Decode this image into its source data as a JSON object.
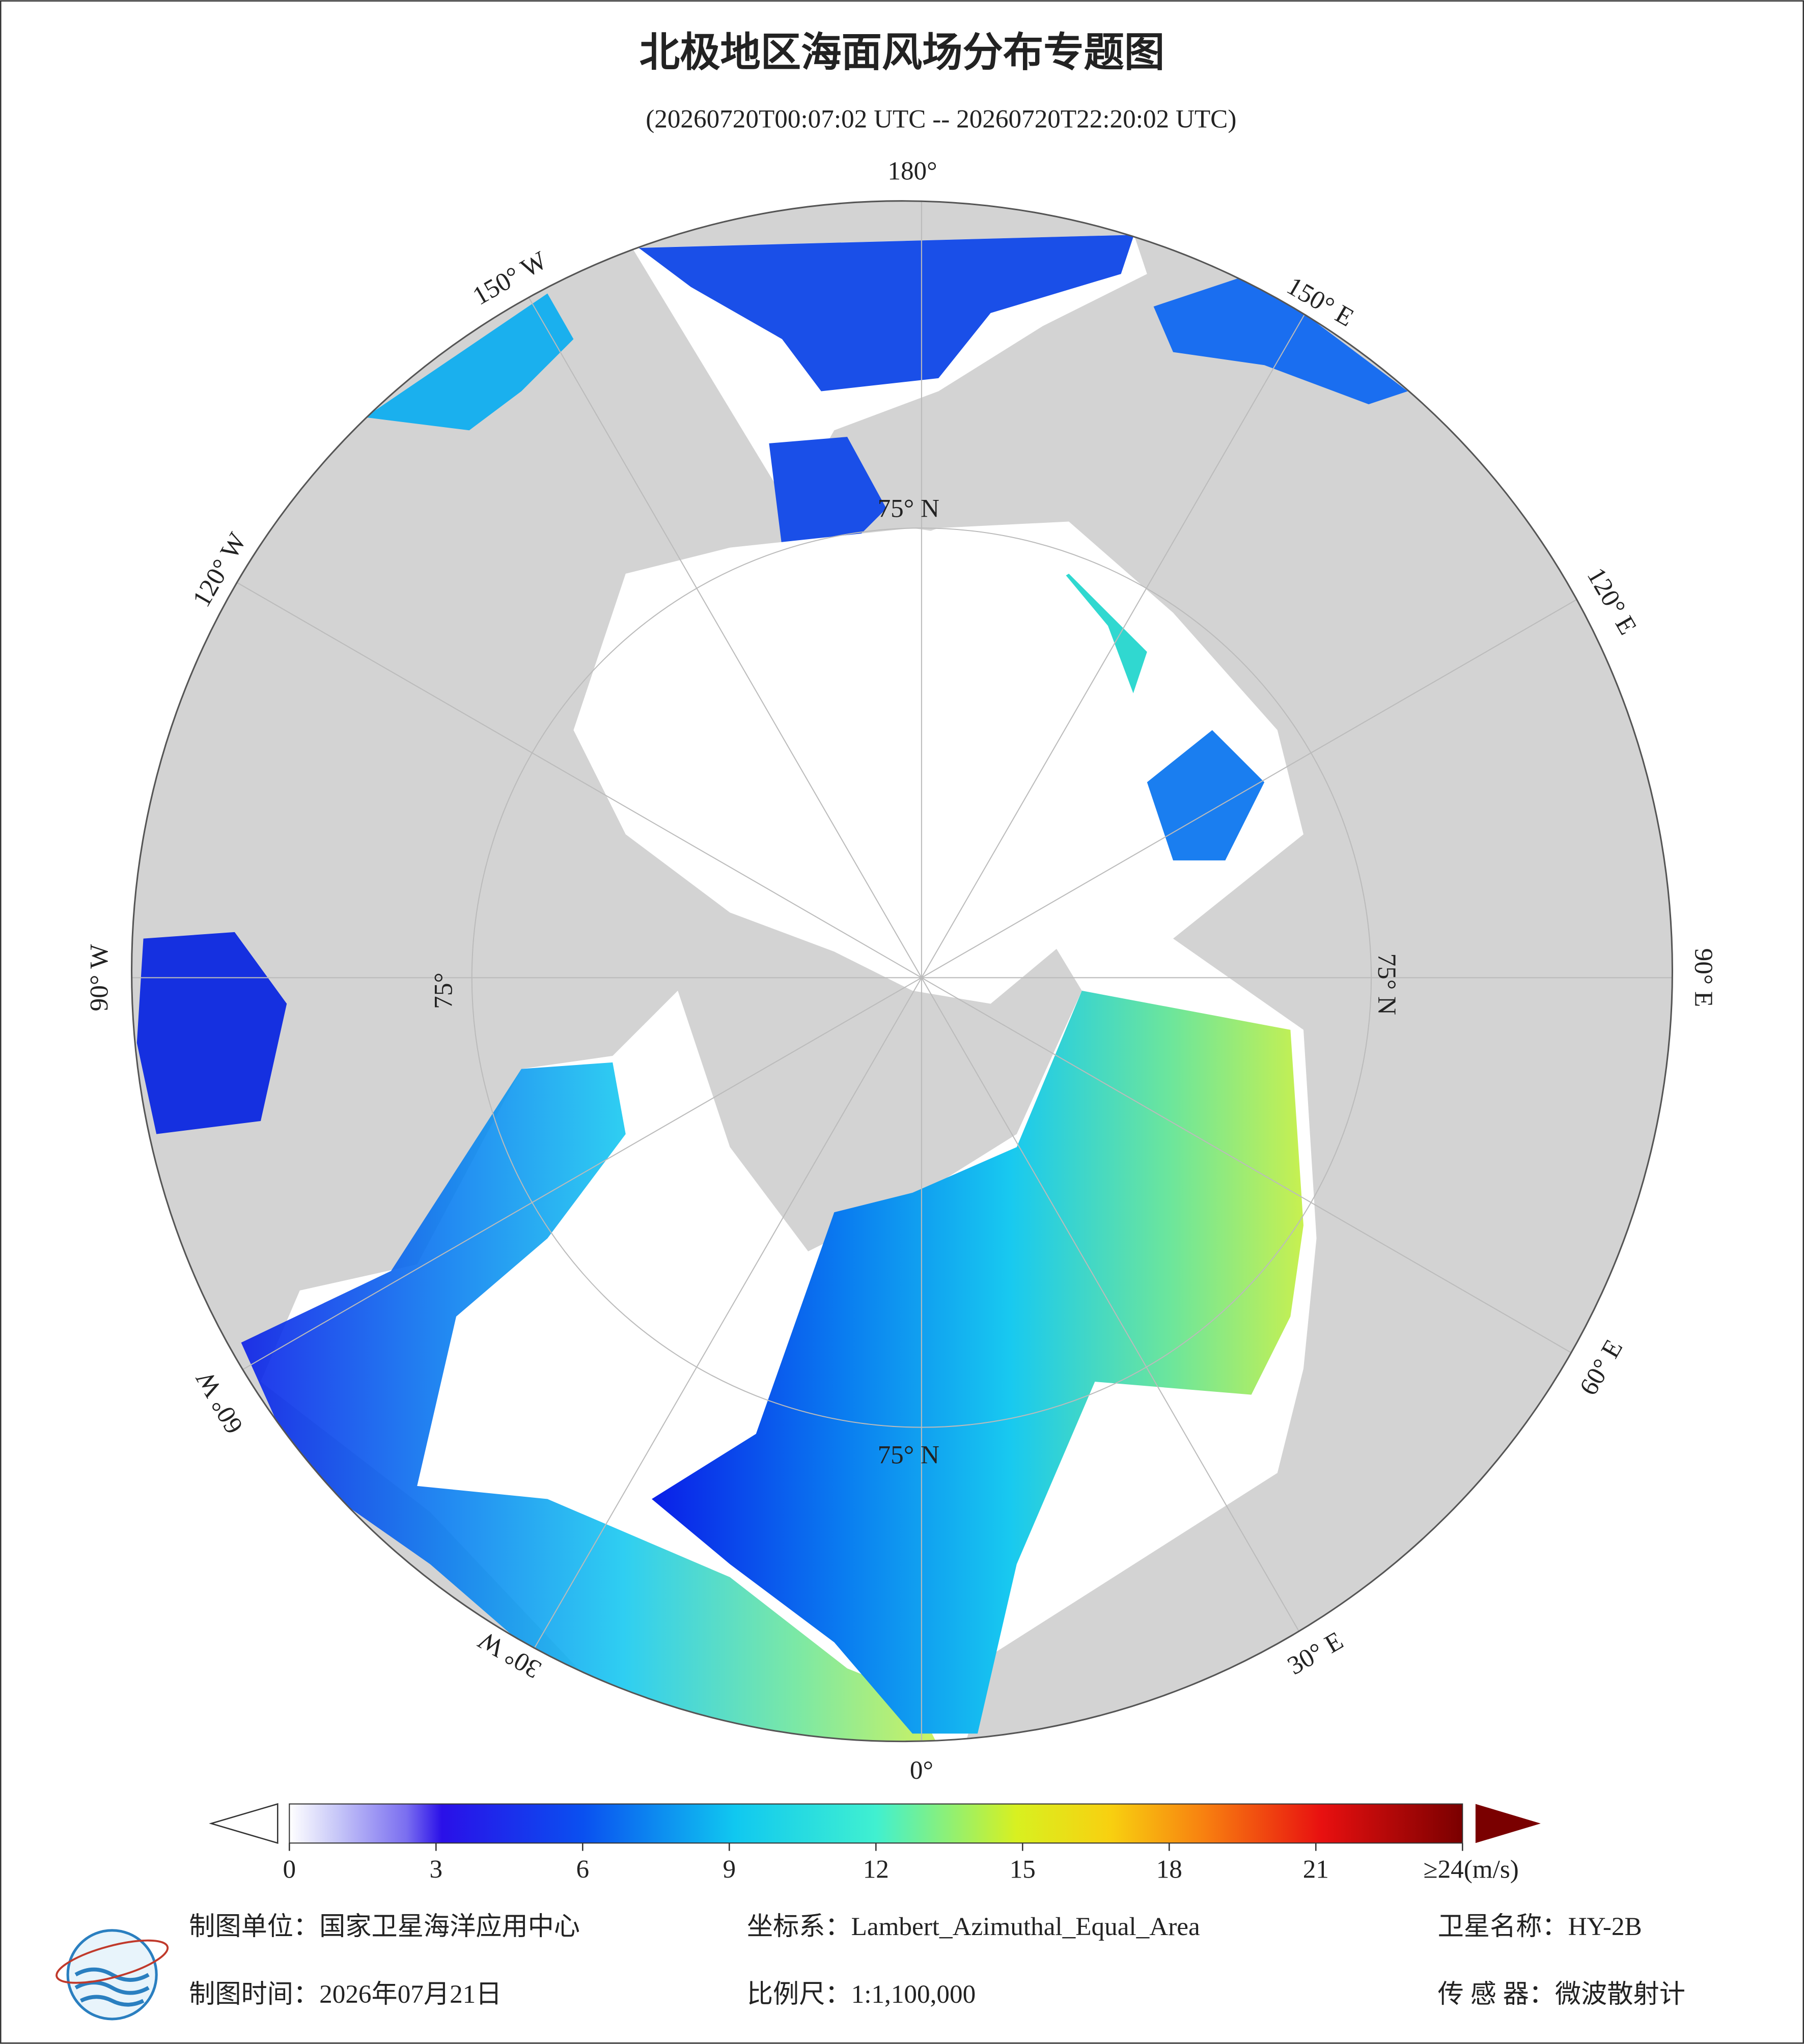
{
  "header": {
    "title": "北极地区海面风场分布专题图",
    "subtitle": "(20260720T00:07:02 UTC -- 20260720T22:20:02 UTC)"
  },
  "map": {
    "lon_labels": [
      "180°",
      "150° E",
      "120° E",
      "90° E",
      "60° E",
      "30° E",
      "0°",
      "30° W",
      "60° W",
      "90° W",
      "120° W",
      "150° W"
    ],
    "lat_labels": [
      "75° N",
      "75° N",
      "75° N",
      "75°"
    ]
  },
  "colorbar": {
    "lim": [
      0,
      24
    ],
    "ticks": [
      0,
      3,
      6,
      9,
      12,
      15,
      18,
      21,
      {
        "value": 24,
        "label": "≥24(m/s)"
      }
    ]
  },
  "footer": {
    "unit": "制图单位：国家卫星海洋应用中心",
    "crs": "坐标系：Lambert_Azimuthal_Equal_Area",
    "satellite": "卫星名称：HY-2B",
    "date": "制图时间：2026年07月21日",
    "scale": "比例尺：1:1,100,000",
    "sensor": "传 感 器：微波散射计"
  }
}
